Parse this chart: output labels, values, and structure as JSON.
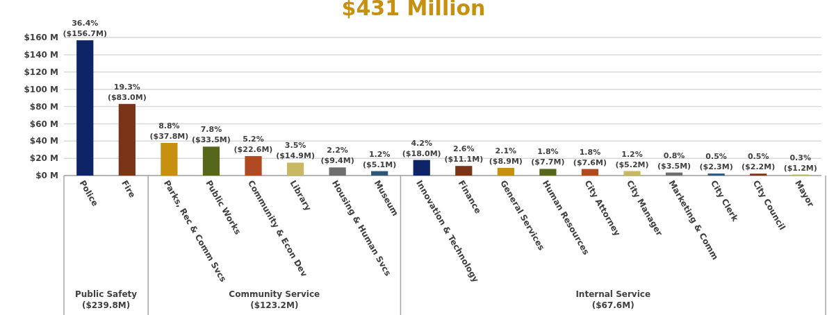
{
  "chart_data": {
    "type": "bar",
    "title": "$431 Million",
    "categories": [
      "Police",
      "Fire",
      "Parks, Rec & Comm Svcs",
      "Public Works",
      "Community & Econ Dev",
      "Library",
      "Housing & Human Svcs",
      "Museum",
      "Innovation & Technology",
      "Finance",
      "General Services",
      "Human Resources",
      "City Attorney",
      "City Manager",
      "Marketing & Comm",
      "City Clerk",
      "City Council",
      "Mayor"
    ],
    "values": [
      156.7,
      83.0,
      37.8,
      33.5,
      22.6,
      14.9,
      9.4,
      5.1,
      18.0,
      11.1,
      8.9,
      7.7,
      7.6,
      5.2,
      3.5,
      2.3,
      2.2,
      1.2
    ],
    "colors": [
      "#0d2466",
      "#7a3518",
      "#c8900f",
      "#56661a",
      "#b04a22",
      "#c8b862",
      "#6e6e6e",
      "#2d5678",
      "#0d2466",
      "#7a3518",
      "#c8900f",
      "#56661a",
      "#b04a22",
      "#c8b862",
      "#6e6e6e",
      "#2d5678",
      "#7a3518",
      "#c8b862"
    ],
    "value_labels": [
      "($156.7M)",
      "($83.0M)",
      "($37.8M)",
      "($33.5M)",
      "($22.6M)",
      "($14.9M)",
      "($9.4M)",
      "($5.1M)",
      "($18.0M)",
      "($11.1M)",
      "($8.9M)",
      "($7.7M)",
      "($7.6M)",
      "($5.2M)",
      "($3.5M)",
      "($2.3M)",
      "($2.2M)",
      "($1.2M)"
    ],
    "ylim": [
      0,
      160
    ],
    "yticks": [
      {
        "value": 0,
        "label": "$0 M"
      },
      {
        "value": 20,
        "label": "$20 M"
      },
      {
        "value": 40,
        "label": "$40 M"
      },
      {
        "value": 60,
        "label": "$60 M"
      },
      {
        "value": 80,
        "label": "$80 M"
      },
      {
        "value": 100,
        "label": "$100 M"
      },
      {
        "value": 120,
        "label": "$120 M"
      },
      {
        "value": 140,
        "label": "$140 M"
      },
      {
        "value": 160,
        "label": "$160 M"
      }
    ],
    "grid": "y",
    "annotations": [
      {
        "text": "36.4%",
        "x": "Police",
        "y": 156.7
      },
      {
        "text": "19.3%",
        "x": "Fire",
        "y": 83.0
      },
      {
        "text": "8.8%",
        "x": "Parks, Rec & Comm Svcs",
        "y": 37.8
      },
      {
        "text": "7.8%",
        "x": "Public Works",
        "y": 33.5
      },
      {
        "text": "5.2%",
        "x": "Community & Econ Dev",
        "y": 22.6
      },
      {
        "text": "3.5%",
        "x": "Library",
        "y": 14.9
      },
      {
        "text": "2.2%",
        "x": "Housing & Human Svcs",
        "y": 9.4
      },
      {
        "text": "1.2%",
        "x": "Museum",
        "y": 5.1
      },
      {
        "text": "4.2%",
        "x": "Innovation & Technology",
        "y": 18.0
      },
      {
        "text": "2.6%",
        "x": "Finance",
        "y": 11.1
      },
      {
        "text": "2.1%",
        "x": "General Services",
        "y": 8.9
      },
      {
        "text": "1.8%",
        "x": "Human Resources",
        "y": 7.7
      },
      {
        "text": "1.8%",
        "x": "City Attorney",
        "y": 7.6
      },
      {
        "text": "1.2%",
        "x": "City Manager",
        "y": 5.2
      },
      {
        "text": "0.8%",
        "x": "Marketing & Comm",
        "y": 3.5
      },
      {
        "text": "0.5%",
        "x": "City Clerk",
        "y": 2.3
      },
      {
        "text": "0.5%",
        "x": "City Council",
        "y": 2.2
      },
      {
        "text": "0.3%",
        "x": "Mayor",
        "y": 1.2
      },
      "Public Safety\n($239.8M)",
      "Community Service\n($123.2M)",
      "Internal Service\n($67.6M)"
    ]
  }
}
